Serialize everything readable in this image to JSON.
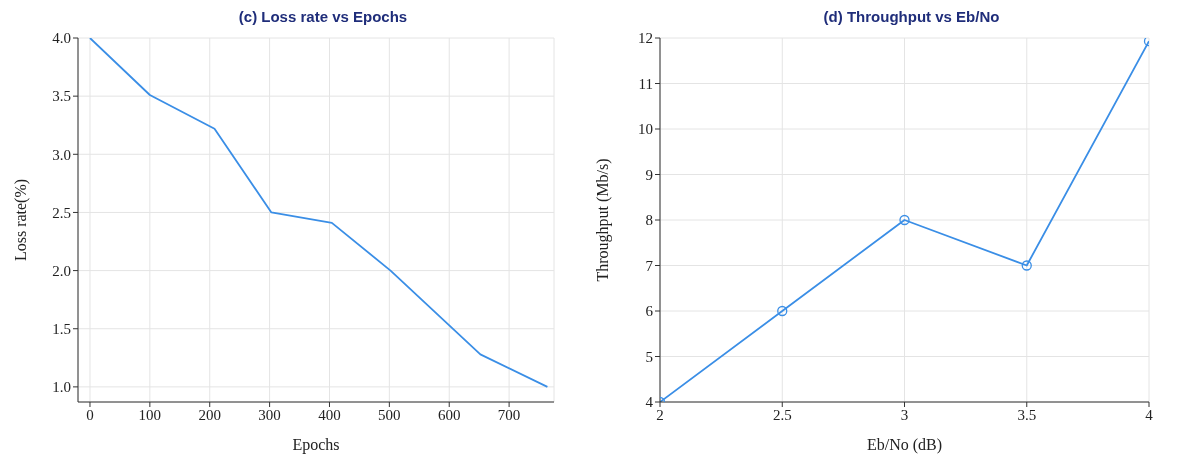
{
  "chart_data": [
    {
      "type": "line",
      "title": "(c) Loss rate vs Epochs",
      "xlabel": "Epochs",
      "ylabel": "Loss rate(%)",
      "x": [
        0,
        100,
        208,
        303,
        404,
        502,
        652,
        764
      ],
      "series": [
        {
          "color": "#3a8ee6",
          "values": [
            4.0,
            3.51,
            3.22,
            2.5,
            2.41,
            2.0,
            1.28,
            1.0
          ]
        }
      ],
      "xlim": [
        -20,
        775
      ],
      "xticks": [
        0,
        100,
        200,
        300,
        400,
        500,
        600,
        700
      ],
      "ylim": [
        0.87,
        4.0
      ],
      "yticks": [
        {
          "value": 1.0,
          "label": "1.0"
        },
        {
          "value": 1.5,
          "label": "1.5"
        },
        {
          "value": 2.0,
          "label": "2.0"
        },
        {
          "value": 2.5,
          "label": "2.5"
        },
        {
          "value": 3.0,
          "label": "3.0"
        },
        {
          "value": 3.5,
          "label": "3.5"
        },
        {
          "value": 4.0,
          "label": "4.0"
        }
      ],
      "grid": true,
      "marker": "none",
      "line_style": "solid"
    },
    {
      "type": "line",
      "title": "(d) Throughput vs Eb/No",
      "xlabel": "Eb/No (dB)",
      "ylabel": "Throughput (Mb/s)",
      "x": [
        2,
        2.5,
        3,
        3.5,
        4
      ],
      "series": [
        {
          "color": "#3a8ee6",
          "values": [
            4,
            6,
            8,
            7,
            11.93
          ]
        }
      ],
      "xlim": [
        2,
        4
      ],
      "xticks": [
        2,
        2.5,
        3,
        3.5,
        4
      ],
      "ylim": [
        4,
        12
      ],
      "yticks": [
        4,
        5,
        6,
        7,
        8,
        9,
        10,
        11,
        12
      ],
      "grid": true,
      "marker": "circle",
      "line_style": "solid"
    }
  ]
}
